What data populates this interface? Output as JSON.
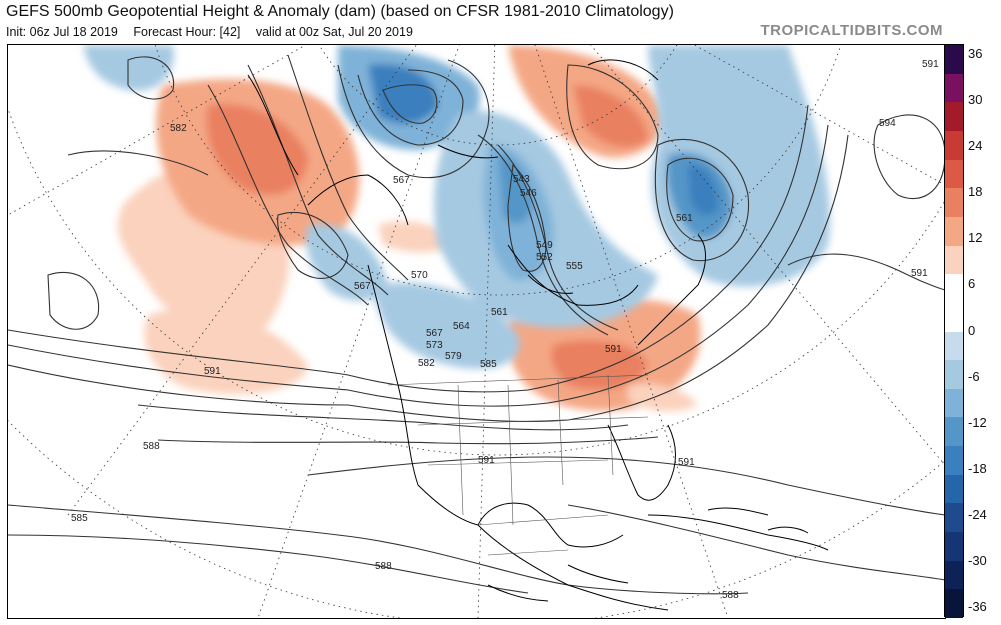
{
  "header": {
    "title": "GEFS 500mb Geopotential Height & Anomaly (dam) (based on CFSR 1981-2010 Climatology)",
    "init": "Init: 06z Jul 18 2019",
    "forecast_hour": "Forecast Hour: [42]",
    "valid": "valid at 00z Sat, Jul 20 2019",
    "brand": "TROPICALTIDBITS.COM"
  },
  "colorbar": {
    "labels": [
      "36",
      "30",
      "24",
      "18",
      "12",
      "6",
      "0",
      "-6",
      "-12",
      "-18",
      "-24",
      "-30",
      "-36"
    ],
    "colors": [
      "#2a0a4a",
      "#7a1060",
      "#a31a2a",
      "#c93a35",
      "#dc5a45",
      "#e98060",
      "#f4a785",
      "#fbd2bd",
      "#ffffff",
      "#ffffff",
      "#c6dcec",
      "#a6c9e2",
      "#7fb2d8",
      "#5596c8",
      "#3a7fbe",
      "#2566ab",
      "#1f4a8e",
      "#163574",
      "#0d2256",
      "#08143a"
    ]
  },
  "contour_labels": [
    "582",
    "567",
    "570",
    "567",
    "543",
    "546",
    "549",
    "552",
    "555",
    "561",
    "561",
    "564",
    "567",
    "573",
    "579",
    "582",
    "585",
    "591",
    "591",
    "591",
    "591",
    "594",
    "591",
    "588",
    "585",
    "591",
    "588",
    "588"
  ],
  "icons": {
    "brand": "brand-watermark-text",
    "map": "weather-map"
  }
}
